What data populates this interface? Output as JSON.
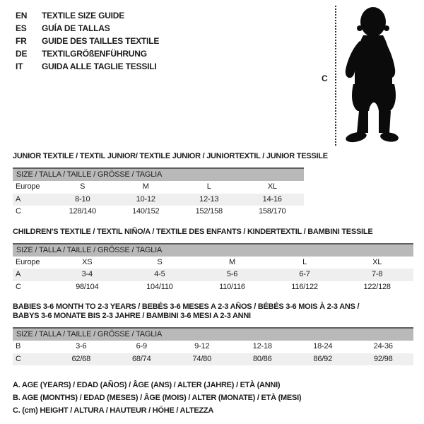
{
  "colors": {
    "text": "#1c1c1c",
    "table_header_bar": "#b9b9b9",
    "table_header_border": "#5e5e5e",
    "shaded_row": "#efefef",
    "silhouette": "#0b0b0b",
    "background": "#ffffff"
  },
  "languages": {
    "items": [
      {
        "code": "EN",
        "title": "TEXTILE SIZE GUIDE"
      },
      {
        "code": "ES",
        "title": "GUÍA DE TALLAS"
      },
      {
        "code": "FR",
        "title": "GUIDE DES TAILLES TEXTILE"
      },
      {
        "code": "DE",
        "title": "TEXTILGRÖßENFÜHRUNG"
      },
      {
        "code": "IT",
        "title": "GUIDA ALLE TAGLIE TESSILI"
      }
    ]
  },
  "figure": {
    "icon": "baby-silhouette",
    "measure_label": "C"
  },
  "sections": [
    {
      "id": "junior",
      "title_lines": [
        "JUNIOR TEXTILE / TEXTIL JUNIOR/ TEXTILE JUNIOR / JUNIORTEXTIL / JUNIOR TESSILE"
      ],
      "size_header": "SIZE / TALLA / TAILLE / GRÖSSE / TAGLIA",
      "rows": [
        {
          "label": "Europe",
          "values": [
            "S",
            "M",
            "L",
            "XL"
          ],
          "shaded": false
        },
        {
          "label": "A",
          "values": [
            "8-10",
            "10-12",
            "12-13",
            "14-16"
          ],
          "shaded": true
        },
        {
          "label": "C",
          "values": [
            "128/140",
            "140/152",
            "152/158",
            "158/170"
          ],
          "shaded": false
        }
      ]
    },
    {
      "id": "children",
      "title_lines": [
        "CHILDREN'S TEXTILE / TEXTIL NIÑO/A / TEXTILE DES ENFANTS / KINDERTEXTIL / BAMBINI TESSILE"
      ],
      "size_header": "SIZE / TALLA / TAILLE / GRÖSSE / TAGLIA",
      "rows": [
        {
          "label": "Europe",
          "values": [
            "XS",
            "S",
            "M",
            "L",
            "XL"
          ],
          "shaded": false
        },
        {
          "label": "A",
          "values": [
            "3-4",
            "4-5",
            "5-6",
            "6-7",
            "7-8"
          ],
          "shaded": true
        },
        {
          "label": "C",
          "values": [
            "98/104",
            "104/110",
            "110/116",
            "116/122",
            "122/128"
          ],
          "shaded": false
        }
      ]
    },
    {
      "id": "babies",
      "title_lines": [
        "BABIES 3-6 MONTH TO 2-3 YEARS / BEBÉS 3-6 MESES A 2-3 AÑOS / BÉBÉS 3-6 MOIS À 2-3 ANS /",
        "BABYS 3-6 MONATE BIS 2-3 JAHRE / BAMBINI 3-6 MESI A 2-3 ANNI"
      ],
      "size_header": "SIZE / TALLA / TAILLE / GRÖSSE / TAGLIA",
      "rows": [
        {
          "label": "B",
          "values": [
            "3-6",
            "6-9",
            "9-12",
            "12-18",
            "18-24",
            "24-36"
          ],
          "shaded": false
        },
        {
          "label": "C",
          "values": [
            "62/68",
            "68/74",
            "74/80",
            "80/86",
            "86/92",
            "92/98"
          ],
          "shaded": true
        }
      ]
    }
  ],
  "notes": [
    "A. AGE (YEARS) / EDAD (AÑOS) / ÂGE (ANS) / ALTER (JAHRE) / ETÀ (ANNI)",
    "B. AGE (MONTHS) / EDAD (MESES) / ÂGE (MOIS) / ALTER (MONATE) / ETÀ (MESI)",
    "C. (cm) HEIGHT / ALTURA / HAUTEUR / HÖHE / ALTEZZA"
  ]
}
